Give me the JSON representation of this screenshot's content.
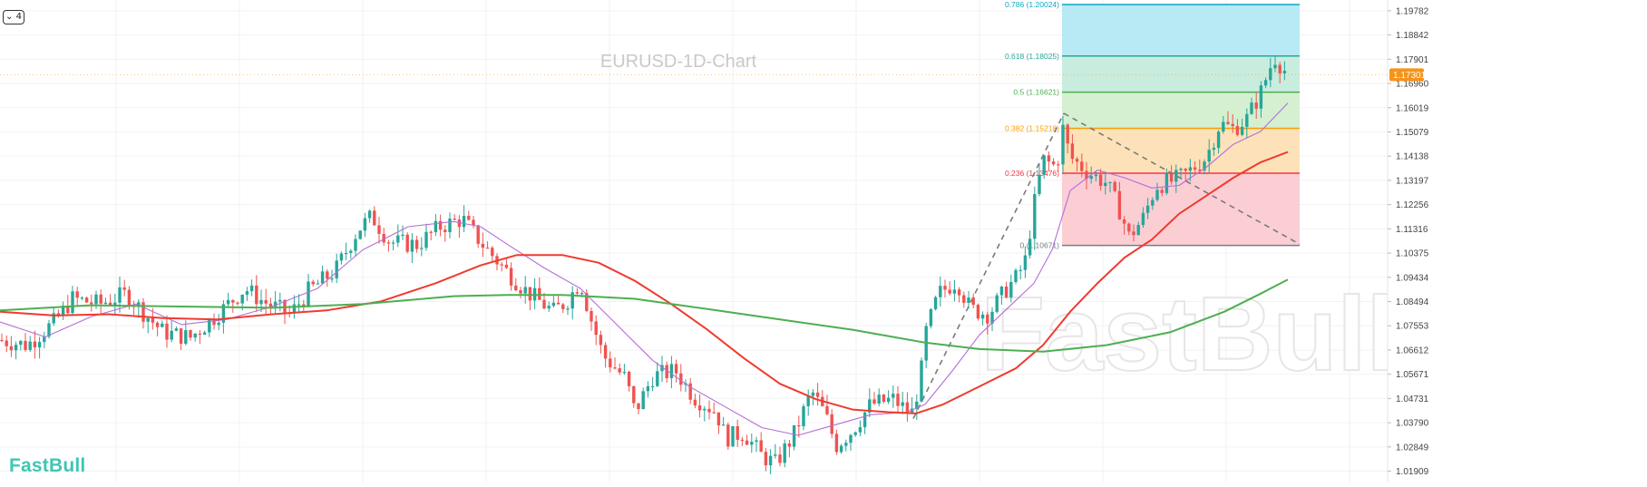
{
  "colors": {
    "candle_up": "#26a69a",
    "candle_down": "#ef5350",
    "ma_fast": "#b36fd6",
    "ma_mid": "#f03a2e",
    "ma_slow": "#4caf50",
    "current_price": "#f7931a",
    "brand": "#3fc6b5"
  },
  "ui": {
    "collapse_button": {
      "icon": "chevron-down-icon",
      "label": "4"
    },
    "brand": "FastBull",
    "watermark": "FastBull"
  },
  "chart_data": {
    "type": "candlestick",
    "title": "EURUSD-1D-Chart",
    "y_axis_ticks": [
      "1.19782",
      "1.18842",
      "1.17901",
      "1.16960",
      "1.16019",
      "1.15079",
      "1.14138",
      "1.13197",
      "1.12256",
      "1.11316",
      "1.10375",
      "1.09434",
      "1.08494",
      "1.07553",
      "1.06612",
      "1.05671",
      "1.04731",
      "1.03790",
      "1.02849",
      "1.01909"
    ],
    "ylim": [
      1.0147,
      1.202
    ],
    "current_price": {
      "value": 1.17301,
      "label": "1.17301"
    },
    "grid": true,
    "fibonacci": {
      "swing_low": 1.10671,
      "swing_high": 1.20024,
      "levels": [
        {
          "ratio": "0.786",
          "price": 1.20024,
          "label": "0.786 (1.20024)",
          "color": "#0ba7c4",
          "fill": "#b3e9f3"
        },
        {
          "ratio": "0.618",
          "price": 1.18025,
          "label": "0.618 (1.18025)",
          "color": "#26a69a",
          "fill": "#c5ecdd"
        },
        {
          "ratio": "0.5",
          "price": 1.16621,
          "label": "0.5 (1.16621)",
          "color": "#4caf50",
          "fill": "#d3efcf"
        },
        {
          "ratio": "0.382",
          "price": 1.15218,
          "label": "0.382 (1.15218)",
          "color": "#f59d0a",
          "fill": "#fde0b5"
        },
        {
          "ratio": "0.236",
          "price": 1.13476,
          "label": "0.236 (1.13476)",
          "color": "#f23645",
          "fill": "#fbcbd2"
        },
        {
          "ratio": "0",
          "price": 1.10671,
          "label": "0 (1.10671)",
          "color": "#787b86",
          "fill": ""
        }
      ]
    },
    "trend_lines": [
      {
        "from": [
          1007,
          1.0395
        ],
        "to": [
          1173,
          1.158
        ],
        "style": "dashed"
      },
      {
        "from": [
          1173,
          1.158
        ],
        "to": [
          1433,
          1.1072
        ],
        "style": "dashed"
      }
    ],
    "moving_averages": [
      {
        "key": "ma_fast",
        "points": [
          [
            0,
            1.077
          ],
          [
            50,
            1.0712
          ],
          [
            100,
            1.079
          ],
          [
            150,
            1.084
          ],
          [
            200,
            1.076
          ],
          [
            250,
            1.078
          ],
          [
            300,
            1.083
          ],
          [
            350,
            1.09
          ],
          [
            400,
            1.105
          ],
          [
            450,
            1.114
          ],
          [
            500,
            1.116
          ],
          [
            530,
            1.114
          ],
          [
            560,
            1.107
          ],
          [
            600,
            1.098
          ],
          [
            640,
            1.09
          ],
          [
            680,
            1.076
          ],
          [
            720,
            1.062
          ],
          [
            760,
            1.052
          ],
          [
            800,
            1.044
          ],
          [
            840,
            1.036
          ],
          [
            880,
            1.033
          ],
          [
            920,
            1.037
          ],
          [
            960,
            1.041
          ],
          [
            1000,
            1.042
          ],
          [
            1020,
            1.045
          ],
          [
            1050,
            1.058
          ],
          [
            1080,
            1.072
          ],
          [
            1110,
            1.082
          ],
          [
            1140,
            1.092
          ],
          [
            1160,
            1.105
          ],
          [
            1180,
            1.128
          ],
          [
            1210,
            1.136
          ],
          [
            1240,
            1.133
          ],
          [
            1270,
            1.129
          ],
          [
            1300,
            1.13
          ],
          [
            1330,
            1.137
          ],
          [
            1360,
            1.146
          ],
          [
            1390,
            1.151
          ],
          [
            1420,
            1.162
          ]
        ]
      },
      {
        "key": "ma_mid",
        "points": [
          [
            0,
            1.081
          ],
          [
            60,
            1.0795
          ],
          [
            120,
            1.08
          ],
          [
            180,
            1.0785
          ],
          [
            240,
            1.078
          ],
          [
            300,
            1.08
          ],
          [
            360,
            1.0815
          ],
          [
            420,
            1.085
          ],
          [
            480,
            1.092
          ],
          [
            530,
            1.099
          ],
          [
            570,
            1.103
          ],
          [
            620,
            1.103
          ],
          [
            660,
            1.1
          ],
          [
            700,
            1.093
          ],
          [
            740,
            1.084
          ],
          [
            780,
            1.074
          ],
          [
            820,
            1.063
          ],
          [
            860,
            1.053
          ],
          [
            900,
            1.047
          ],
          [
            940,
            1.043
          ],
          [
            980,
            1.042
          ],
          [
            1010,
            1.0415
          ],
          [
            1040,
            1.045
          ],
          [
            1080,
            1.052
          ],
          [
            1120,
            1.059
          ],
          [
            1150,
            1.068
          ],
          [
            1180,
            1.081
          ],
          [
            1210,
            1.092
          ],
          [
            1240,
            1.102
          ],
          [
            1270,
            1.109
          ],
          [
            1300,
            1.119
          ],
          [
            1330,
            1.126
          ],
          [
            1360,
            1.133
          ],
          [
            1390,
            1.139
          ],
          [
            1420,
            1.143
          ]
        ]
      },
      {
        "key": "ma_slow",
        "points": [
          [
            0,
            1.0815
          ],
          [
            100,
            1.0835
          ],
          [
            200,
            1.083
          ],
          [
            300,
            1.0825
          ],
          [
            400,
            1.084
          ],
          [
            500,
            1.087
          ],
          [
            560,
            1.0875
          ],
          [
            620,
            1.0875
          ],
          [
            700,
            1.086
          ],
          [
            780,
            1.082
          ],
          [
            860,
            1.078
          ],
          [
            940,
            1.074
          ],
          [
            1020,
            1.069
          ],
          [
            1080,
            1.0665
          ],
          [
            1150,
            1.0655
          ],
          [
            1220,
            1.068
          ],
          [
            1290,
            1.073
          ],
          [
            1350,
            1.081
          ],
          [
            1390,
            1.088
          ],
          [
            1420,
            1.0935
          ]
        ]
      }
    ],
    "candles_description": "EURUSD daily candlesticks; OHLC values are in the script, estimated from the screenshot"
  }
}
